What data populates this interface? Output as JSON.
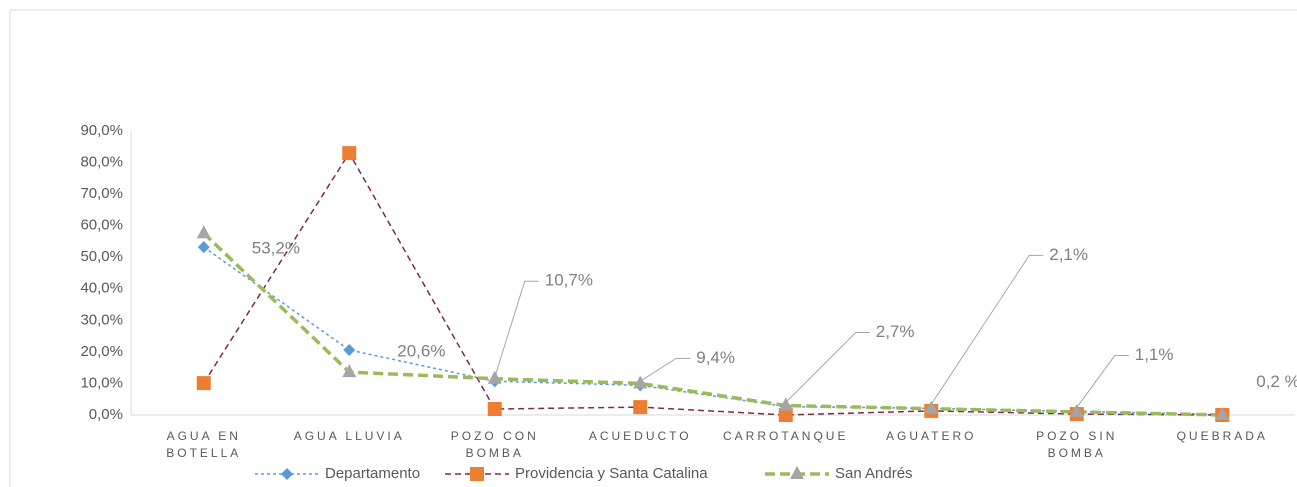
{
  "chart_data": {
    "type": "line",
    "categories": [
      "AGUA EN BOTELLA",
      "AGUA LLUVIA",
      "POZO CON BOMBA",
      "ACUEDUCTO",
      "CARROTANQUE",
      "AGUATERO",
      "POZO SIN BOMBA",
      "QUEBRADA"
    ],
    "series": [
      {
        "name": "Departamento",
        "color": "#5b9bd5",
        "marker_color": "#5b9bd5",
        "marker": "diamond",
        "dash": "3,3",
        "width": 1.5,
        "values": [
          53.2,
          20.6,
          10.7,
          9.4,
          2.7,
          2.1,
          1.1,
          0.2
        ],
        "value_labels": [
          "53,2%",
          "20,6%",
          "10,7%",
          "9,4%",
          "2,7%",
          "2,1%",
          "1,1%",
          "0,2 %"
        ]
      },
      {
        "name": "Providencia y Santa Catalina",
        "color": "#7b2c48",
        "marker_color": "#ed7d31",
        "marker": "square",
        "dash": "6,4",
        "width": 1.5,
        "values": [
          10.1,
          83,
          1.9,
          2.5,
          0,
          1.3,
          0.3,
          0
        ]
      },
      {
        "name": "San Andrés",
        "color": "#9bbb59",
        "marker_color": "#a5a5a5",
        "marker": "triangle",
        "dash": "10,5",
        "width": 3.5,
        "values": [
          57.6,
          13.6,
          11.5,
          10,
          3,
          2,
          1,
          0
        ]
      }
    ],
    "ylim": [
      0,
      90
    ],
    "yticks": [
      {
        "value": 0,
        "label": "0,0%"
      },
      {
        "value": 10,
        "label": "10,0%"
      },
      {
        "value": 20,
        "label": "20,0%"
      },
      {
        "value": 30,
        "label": "30,0%"
      },
      {
        "value": 40,
        "label": "40,0%"
      },
      {
        "value": 50,
        "label": "50,0%"
      },
      {
        "value": 60,
        "label": "60,0%"
      },
      {
        "value": 70,
        "label": "70,0%"
      },
      {
        "value": 80,
        "label": "80,0%"
      },
      {
        "value": 90,
        "label": "90,0%"
      }
    ],
    "legend": "bottom"
  }
}
